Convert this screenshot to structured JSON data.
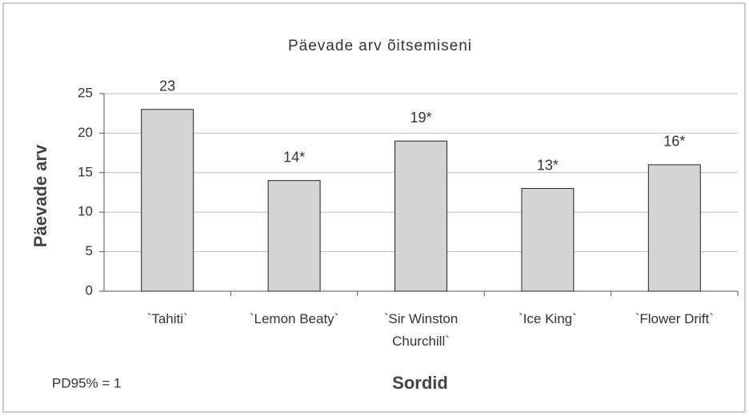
{
  "chart_data": {
    "type": "bar",
    "title": "Päevade arv õitsemiseni",
    "categories": [
      "`Tahiti`",
      "`Lemon Beaty`",
      "`Sir Winston Churchill`",
      "`Ice King`",
      "`Flower Drift`"
    ],
    "values": [
      23,
      14,
      19,
      13,
      16
    ],
    "value_labels": [
      "23",
      "14*",
      "19*",
      "13*",
      "16*"
    ],
    "color": "#d4d4d4",
    "ylim": [
      0,
      25
    ],
    "yticks": [
      0,
      5,
      10,
      15,
      20,
      25
    ],
    "grid": true,
    "y_label": "Päevade arv",
    "x_label": "Sordid",
    "annotation": "PD95% = 1"
  }
}
